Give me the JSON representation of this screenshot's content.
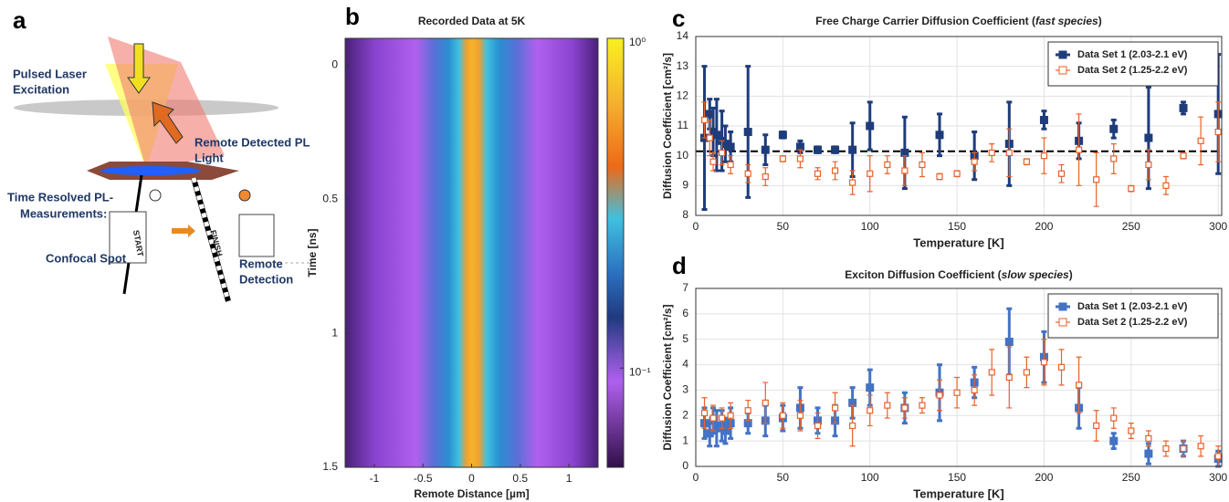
{
  "panel_a": {
    "label": "a",
    "excitation": [
      "Pulsed Laser",
      "Excitation"
    ],
    "detected": [
      "Remote Detected PL",
      "Light"
    ],
    "measurements": [
      "Time Resolved PL-",
      "Measurements:"
    ],
    "confocal": "Confocal Spot",
    "remote": [
      "Remote",
      "Detection"
    ],
    "start": "START",
    "finish": "FINISH"
  },
  "chart_data": [
    {
      "type": "heatmap",
      "panel": "b",
      "title": "Recorded Data at 5K",
      "xlabel": "Remote Distance [µm]",
      "ylabel": "Time [ns]",
      "xlim": [
        -1.3,
        1.3
      ],
      "ylim": [
        1.5,
        -0.1
      ],
      "xticks": [
        -1,
        -0.5,
        0,
        0.5,
        1
      ],
      "yticks": [
        0,
        0.5,
        1,
        1.5
      ],
      "colorbar_log": true,
      "clim": [
        0.05,
        1
      ],
      "cticks": [
        {
          "value": 1,
          "label": "10⁰"
        },
        {
          "value": 0.1,
          "label": "10⁻¹"
        }
      ]
    },
    {
      "type": "scatter",
      "panel": "c",
      "title": [
        "Free Charge Carrier Diffusion Coefficient (",
        "fast species",
        ")"
      ],
      "xlabel": "Temperature [K]",
      "ylabel": "Diffusion Coefficient [cm²/s]",
      "xlim": [
        0,
        302
      ],
      "ylim": [
        8,
        14
      ],
      "xticks": [
        0,
        50,
        100,
        150,
        200,
        250,
        300
      ],
      "yticks": [
        8,
        9,
        10,
        11,
        12,
        13,
        14
      ],
      "grid": true,
      "legend": "upper right",
      "hline": 10.15,
      "series": [
        {
          "name": "Data Set 1 (2.03-2.1 eV)",
          "color": "#1f3c7a",
          "filled": true,
          "x": [
            5,
            8,
            10,
            12,
            15,
            17,
            20,
            30,
            40,
            50,
            60,
            70,
            80,
            90,
            100,
            120,
            140,
            160,
            180,
            200,
            220,
            240,
            260,
            280,
            300
          ],
          "values": [
            10.6,
            11.4,
            10.8,
            10.7,
            10.5,
            10.4,
            10.3,
            10.8,
            10.2,
            10.7,
            10.3,
            10.2,
            10.2,
            10.2,
            11.0,
            10.1,
            10.7,
            10.0,
            10.4,
            11.2,
            10.5,
            10.9,
            10.6,
            11.6,
            11.4
          ],
          "errors": [
            2.4,
            0.5,
            0.8,
            1.2,
            1.0,
            0.6,
            0.5,
            2.2,
            0.5,
            0.1,
            0.2,
            0.1,
            0.1,
            0.9,
            0.8,
            1.2,
            0.7,
            0.8,
            1.4,
            0.3,
            0.6,
            0.3,
            1.7,
            0.2,
            2.0
          ]
        },
        {
          "name": "Data Set 2 (1.25-2.2 eV)",
          "color": "#e8622a",
          "filled": false,
          "x": [
            5,
            8,
            10,
            15,
            20,
            30,
            40,
            50,
            60,
            70,
            80,
            90,
            100,
            110,
            120,
            130,
            140,
            150,
            160,
            170,
            180,
            190,
            200,
            210,
            220,
            230,
            240,
            250,
            260,
            270,
            280,
            290,
            300
          ],
          "values": [
            11.2,
            10.6,
            9.8,
            10.1,
            9.7,
            9.4,
            9.3,
            9.9,
            9.9,
            9.4,
            9.5,
            9.1,
            9.4,
            9.7,
            9.5,
            9.7,
            9.3,
            9.4,
            9.8,
            10.1,
            10.1,
            9.8,
            10.0,
            9.4,
            10.2,
            9.2,
            9.9,
            8.9,
            9.7,
            9.0,
            10.0,
            10.5,
            10.8
          ],
          "errors": [
            0.6,
            0.6,
            0.3,
            0.4,
            0.3,
            0.3,
            0.3,
            0.1,
            0.3,
            0.2,
            0.3,
            0.4,
            0.6,
            0.3,
            0.5,
            0.4,
            0.1,
            0.1,
            0.3,
            0.3,
            0.8,
            0.1,
            0.6,
            0.3,
            1.2,
            0.9,
            0.5,
            0.1,
            0.5,
            0.3,
            0.1,
            0.8,
            1.0
          ]
        }
      ]
    },
    {
      "type": "scatter",
      "panel": "d",
      "title": [
        "Exciton Diffusion Coefficient (",
        "slow species",
        ")"
      ],
      "xlabel": "Temperature [K]",
      "ylabel": "Diffusion Coefficient [cm²/s]",
      "xlim": [
        0,
        302
      ],
      "ylim": [
        0,
        7
      ],
      "xticks": [
        0,
        50,
        100,
        150,
        200,
        250,
        300
      ],
      "yticks": [
        0,
        1,
        2,
        3,
        4,
        5,
        6,
        7
      ],
      "grid": true,
      "legend": "upper right",
      "series": [
        {
          "name": "Data Set 1 (2.03-2.1 eV)",
          "color": "#4472c4",
          "filled": true,
          "x": [
            5,
            8,
            10,
            12,
            15,
            17,
            20,
            30,
            40,
            50,
            60,
            70,
            80,
            90,
            100,
            120,
            140,
            160,
            180,
            200,
            220,
            240,
            260,
            280,
            300
          ],
          "values": [
            1.7,
            1.3,
            1.8,
            1.5,
            1.6,
            1.4,
            1.7,
            1.7,
            1.8,
            1.9,
            2.3,
            1.8,
            1.8,
            2.5,
            3.1,
            2.3,
            2.9,
            3.3,
            4.9,
            4.3,
            2.3,
            1.0,
            0.5,
            0.7,
            0.3
          ],
          "errors": [
            0.6,
            0.5,
            0.5,
            0.7,
            0.6,
            0.5,
            0.6,
            0.4,
            0.6,
            0.5,
            0.8,
            0.5,
            0.6,
            0.6,
            0.7,
            0.6,
            1.1,
            0.6,
            1.3,
            1.0,
            0.8,
            0.3,
            0.4,
            0.3,
            0.3
          ]
        },
        {
          "name": "Data Set 2 (1.25-2.2 eV)",
          "color": "#e8622a",
          "filled": false,
          "x": [
            5,
            10,
            15,
            20,
            30,
            40,
            50,
            60,
            70,
            80,
            90,
            100,
            110,
            120,
            130,
            140,
            150,
            160,
            170,
            180,
            190,
            200,
            210,
            220,
            230,
            240,
            250,
            260,
            270,
            280,
            290,
            300
          ],
          "values": [
            2.1,
            1.9,
            1.9,
            2.0,
            2.2,
            2.5,
            2.0,
            2.0,
            1.6,
            2.3,
            1.6,
            2.2,
            2.4,
            2.3,
            2.4,
            2.8,
            2.9,
            3.0,
            3.7,
            3.5,
            3.7,
            4.1,
            3.9,
            3.2,
            1.6,
            1.9,
            1.4,
            1.1,
            0.7,
            0.7,
            0.8,
            0.4
          ],
          "errors": [
            0.6,
            0.5,
            0.4,
            0.5,
            0.4,
            0.8,
            0.5,
            0.6,
            0.5,
            0.6,
            0.8,
            0.6,
            0.5,
            0.4,
            0.3,
            0.6,
            0.6,
            0.6,
            0.9,
            1.2,
            0.6,
            0.9,
            0.7,
            1.1,
            0.6,
            0.4,
            0.3,
            0.3,
            0.3,
            0.3,
            0.4,
            0.4
          ]
        }
      ]
    }
  ]
}
